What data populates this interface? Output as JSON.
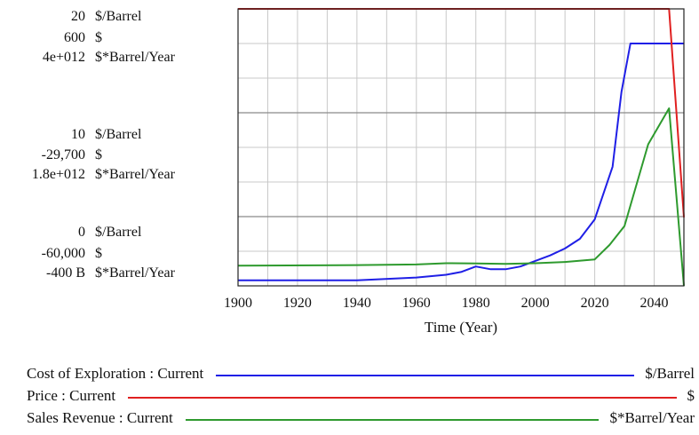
{
  "chart_data": {
    "type": "line",
    "xlabel": "Time (Year)",
    "xlim": [
      1900,
      2050
    ],
    "x_ticks": [
      "1900",
      "1920",
      "1940",
      "1960",
      "1980",
      "2000",
      "2020",
      "2040"
    ],
    "y_axes": [
      {
        "unit_label": "$/Barrel",
        "ylim": [
          0,
          20
        ],
        "ticks": [
          {
            "value": 20,
            "label": "20"
          },
          {
            "value": 10,
            "label": "10"
          },
          {
            "value": 0,
            "label": "0"
          }
        ]
      },
      {
        "unit_label": "$",
        "ylim": [
          -60000,
          600
        ],
        "ticks": [
          {
            "value": 600,
            "label": "600"
          },
          {
            "value": -29700,
            "label": "-29,700"
          },
          {
            "value": -60000,
            "label": "-60,000"
          }
        ]
      },
      {
        "unit_label": "$*Barrel/Year",
        "ylim": [
          -400000000000,
          4000000000000
        ],
        "ticks": [
          {
            "value": 4000000000000,
            "label": "4e+012"
          },
          {
            "value": 1800000000000,
            "label": "1.8e+012"
          },
          {
            "value": -400000000000,
            "label": "-400 B"
          }
        ]
      }
    ],
    "series": [
      {
        "name": "Cost of Exploration : Current",
        "unit": "$/Barrel",
        "axis": 0,
        "color": "#1f1fe6",
        "x": [
          1900,
          1940,
          1960,
          1970,
          1975,
          1980,
          1985,
          1990,
          1995,
          2000,
          2005,
          2010,
          2015,
          2020,
          2026,
          2029,
          2032,
          2040,
          2050
        ],
        "y": [
          0.4,
          0.4,
          0.6,
          0.8,
          1.0,
          1.4,
          1.2,
          1.2,
          1.4,
          1.8,
          2.2,
          2.7,
          3.4,
          4.8,
          8.6,
          14.0,
          17.5,
          17.5,
          17.5
        ]
      },
      {
        "name": "Price : Current",
        "unit": "$",
        "axis": 1,
        "color": "#e02020",
        "x": [
          1900,
          2045,
          2050
        ],
        "y": [
          600,
          600,
          -45000
        ]
      },
      {
        "name": "Sales Revenue : Current",
        "unit": "$*Barrel/Year",
        "axis": 2,
        "color": "#2e9a2e",
        "x": [
          1900,
          1940,
          1960,
          1970,
          1980,
          1990,
          2000,
          2010,
          2020,
          2025,
          2030,
          2038,
          2045,
          2050
        ],
        "y": [
          -80000000000,
          -70000000000,
          -60000000000,
          -40000000000,
          -45000000000,
          -50000000000,
          -40000000000,
          -20000000000,
          20000000000,
          250000000000,
          550000000000,
          1850000000000,
          2420000000000,
          -400000000000
        ]
      }
    ],
    "grid": true,
    "legend_position": "bottom"
  }
}
